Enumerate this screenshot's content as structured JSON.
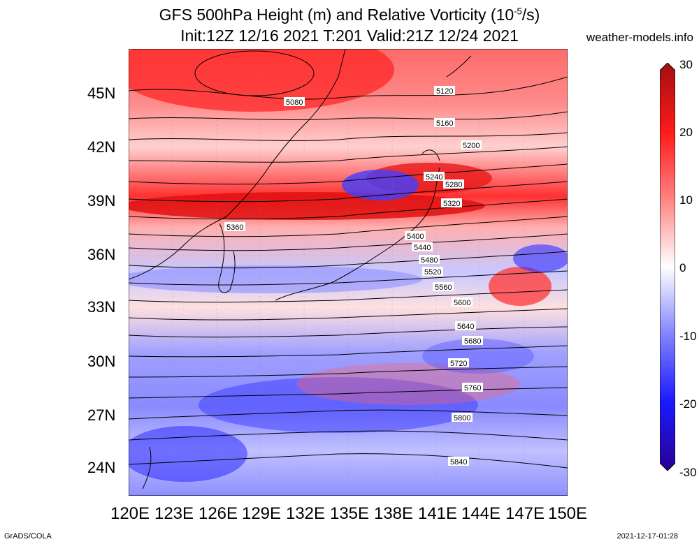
{
  "title_line1_main": "GFS 500hPa Height (m) and Relative Vorticity (10",
  "title_line1_sup": "-5",
  "title_line1_end": "/s)",
  "title_line2": "Init:12Z 12/16 2021 T:201 Valid:21Z 12/24 2021",
  "site": "weather-models.info",
  "footer_left": "GrADS/COLA",
  "footer_right": "2021-12-17-01:28",
  "map": {
    "lat_labels": [
      "45N",
      "42N",
      "39N",
      "36N",
      "33N",
      "30N",
      "27N",
      "24N"
    ],
    "lon_labels": [
      "120E",
      "123E",
      "126E",
      "129E",
      "132E",
      "135E",
      "138E",
      "141E",
      "144E",
      "147E",
      "150E"
    ],
    "contour_labels": [
      "5080",
      "5120",
      "5160",
      "5200",
      "5240",
      "5280",
      "5320",
      "5360",
      "5400",
      "5440",
      "5480",
      "5520",
      "5560",
      "5600",
      "5640",
      "5680",
      "5720",
      "5760",
      "5800",
      "5840"
    ]
  },
  "colorbar": {
    "labels": [
      "30",
      "20",
      "10",
      "0",
      "-10",
      "-20",
      "-30"
    ],
    "colors": [
      "#a01010",
      "#ff1a1a",
      "#ff8080",
      "#ffffff",
      "#8080ff",
      "#1a1aff",
      "#2a0090"
    ]
  }
}
